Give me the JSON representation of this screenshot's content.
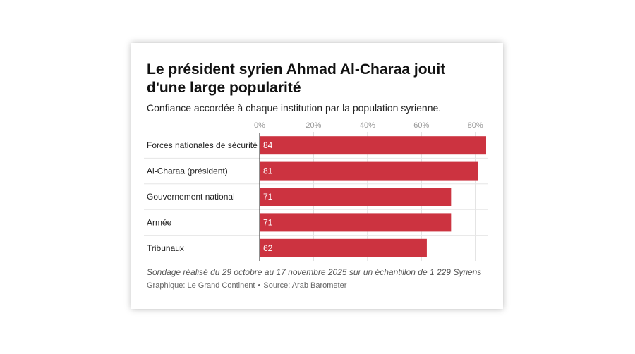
{
  "header": {
    "title": "Le président syrien Ahmad Al-Charaa jouit d'une large popularité",
    "subtitle": "Confiance accordée à chaque institution par la population syrienne."
  },
  "footer": {
    "note": "Sondage réalisé du 29 octobre au 17 novembre 2025 sur un échantillon de 1 229 Syriens",
    "credit_graphic": "Graphique: Le Grand Continent",
    "credit_separator": "•",
    "credit_source": "Source: Arab Barometer"
  },
  "colors": {
    "bar": "#cc3340",
    "grid": "#dddddd",
    "axis": "#222222",
    "tick": "#999999"
  },
  "chart_data": {
    "type": "bar",
    "orientation": "horizontal",
    "title": "Le président syrien Ahmad Al-Charaa jouit d'une large popularité",
    "subtitle": "Confiance accordée à chaque institution par la population syrienne.",
    "categories": [
      "Forces nationales de sécurité",
      "Al-Charaa (président)",
      "Gouvernement national",
      "Armée",
      "Tribunaux"
    ],
    "values": [
      84,
      81,
      71,
      71,
      62
    ],
    "xlim": [
      0,
      84
    ],
    "ticks": [
      0,
      20,
      40,
      60,
      80
    ],
    "tick_labels": [
      "0%",
      "20%",
      "40%",
      "60%",
      "80%"
    ],
    "xlabel": "",
    "ylabel": "",
    "grid": true,
    "legend": "none"
  }
}
